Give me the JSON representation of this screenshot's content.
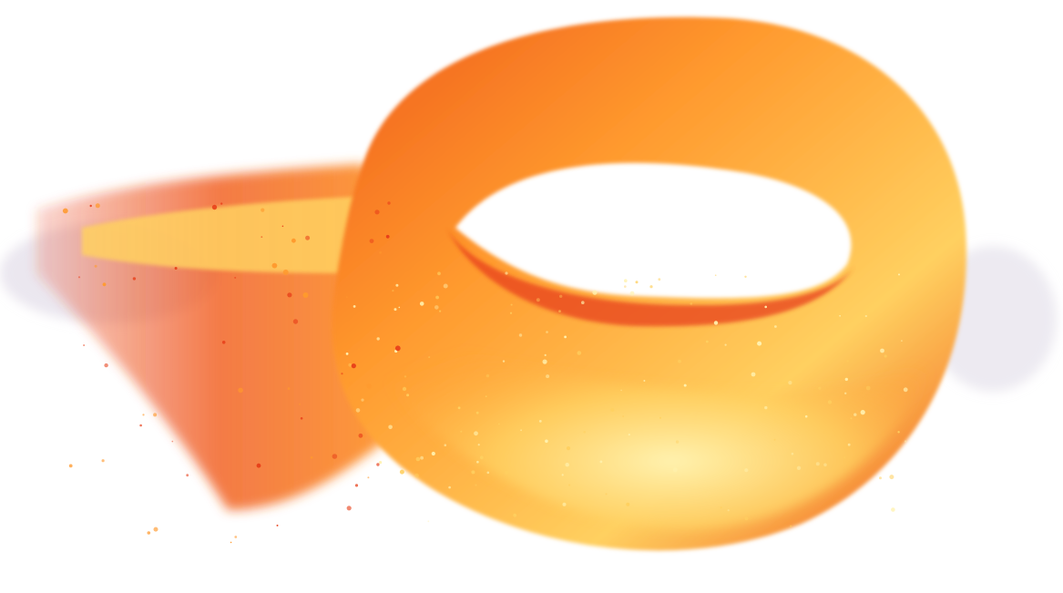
{
  "image": {
    "subject": "fire-swirl",
    "colors": {
      "background": "#ffffff",
      "core": "#fff2b0",
      "bright": "#ffd060",
      "mid": "#ff9a2e",
      "deep": "#f05a1a",
      "ember": "#e8401a",
      "smoke": "#d8d0e0"
    }
  }
}
